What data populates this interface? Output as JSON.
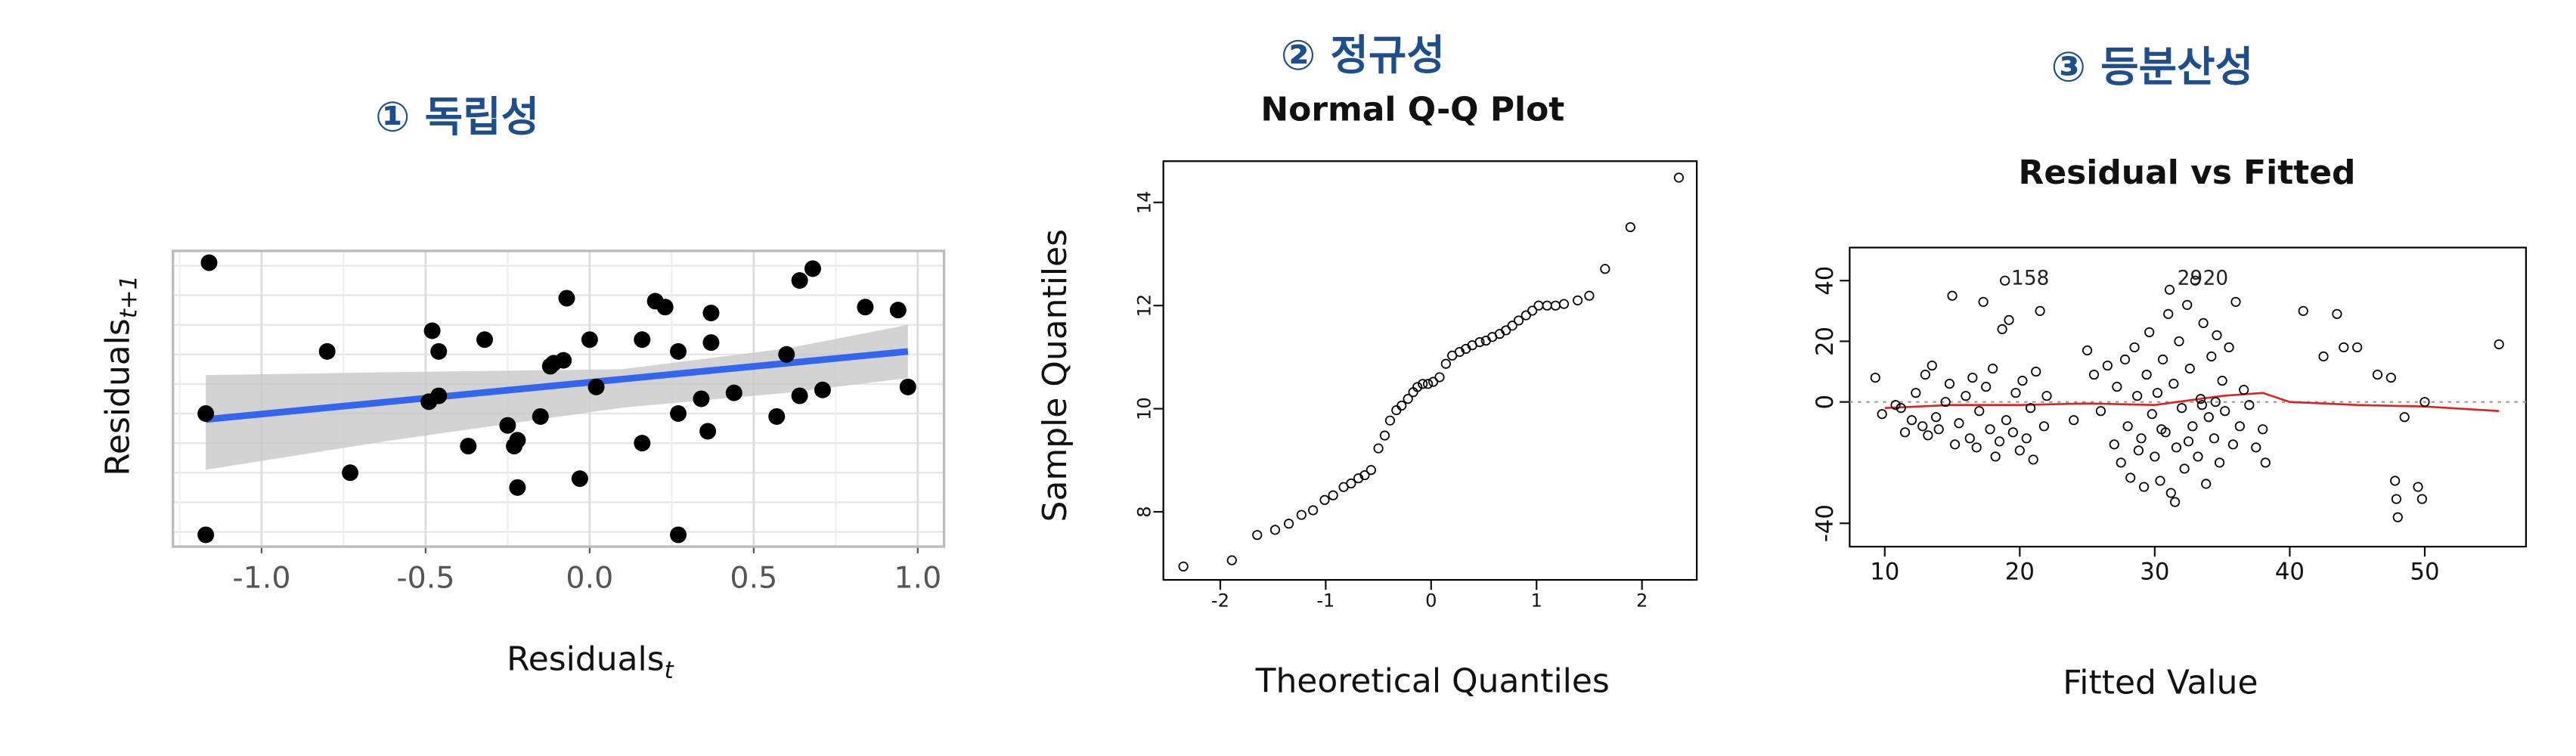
{
  "chart_data": [
    {
      "type": "scatter",
      "title": "① 독립성",
      "x_label": "Residuals",
      "x_label_subscript": "t",
      "y_label": "Residuals",
      "y_label_subscript": "t+1",
      "xlim": [
        -1.27,
        1.08
      ],
      "ylim": [
        -0.45,
        0.55
      ],
      "xticks": [
        {
          "value": -1,
          "label": "-1.0"
        },
        -0.5,
        {
          "value": 0,
          "label": "0.0"
        },
        0.5,
        {
          "value": 1,
          "label": "1.0"
        }
      ],
      "x_minor_gridlines": [
        -1.25,
        -0.75,
        -0.25,
        0.25,
        0.75
      ],
      "y_gridlines": [
        -0.4,
        -0.3,
        -0.2,
        -0.1,
        0,
        0.1,
        0.2,
        0.3,
        0.4,
        0.5
      ],
      "grid": true,
      "marker": "filled",
      "series": [
        {
          "name": "Residuals",
          "color": "#000000",
          "x": [
            -1.16,
            -1.17,
            -1.17,
            -0.8,
            -0.73,
            -0.48,
            -0.46,
            -0.49,
            -0.46,
            -0.37,
            -0.32,
            -0.25,
            -0.23,
            -0.22,
            -0.22,
            -0.15,
            -0.12,
            -0.11,
            -0.08,
            -0.07,
            -0.03,
            0.0,
            0.02,
            0.16,
            0.16,
            0.2,
            0.23,
            0.27,
            0.27,
            0.27,
            0.34,
            0.36,
            0.37,
            0.37,
            0.44,
            0.57,
            0.6,
            0.64,
            0.64,
            0.68,
            0.71,
            0.84,
            0.94,
            0.97
          ],
          "values": [
            0.51,
            0.0,
            -0.41,
            0.21,
            -0.2,
            0.28,
            0.21,
            0.04,
            0.06,
            -0.11,
            0.25,
            -0.04,
            -0.11,
            -0.09,
            -0.25,
            -0.01,
            0.16,
            0.17,
            0.18,
            0.39,
            -0.22,
            0.25,
            0.09,
            0.25,
            -0.1,
            0.38,
            0.36,
            0.21,
            0.0,
            -0.41,
            0.05,
            -0.06,
            0.34,
            0.24,
            0.07,
            -0.01,
            0.2,
            0.45,
            0.06,
            0.49,
            0.08,
            0.36,
            0.35,
            0.09
          ]
        }
      ],
      "fit_line": {
        "color": "#3366ee",
        "x": [
          -1.17,
          0.97
        ],
        "values": [
          -0.02,
          0.21
        ]
      },
      "confidence_band": {
        "color": "#c8c8c8",
        "x": [
          -1.17,
          -0.6,
          0.1,
          0.6,
          0.97
        ],
        "upper": [
          0.13,
          0.14,
          0.15,
          0.22,
          0.3
        ],
        "lower": [
          -0.19,
          -0.09,
          0.02,
          0.07,
          0.12
        ]
      }
    },
    {
      "type": "scatter",
      "title": "② 정규성",
      "subtitle": "Normal Q-Q Plot",
      "x_label": "Theoretical Quantiles",
      "y_label": "Sample Quantiles",
      "xlim": [
        -2.54,
        2.52
      ],
      "ylim": [
        6.68,
        14.8
      ],
      "xticks": [
        -2,
        -1,
        0,
        1,
        2
      ],
      "yticks": [
        8,
        10,
        12,
        14
      ],
      "grid": false,
      "marker": "open",
      "rotate_y_tick_labels": true,
      "series": [
        {
          "name": "Sample",
          "color": "#000000",
          "x": [
            -2.35,
            -1.89,
            -1.65,
            -1.48,
            -1.35,
            -1.23,
            -1.12,
            -1.01,
            -0.93,
            -0.83,
            -0.76,
            -0.69,
            -0.63,
            -0.57,
            -0.5,
            -0.44,
            -0.39,
            -0.33,
            -0.28,
            -0.22,
            -0.17,
            -0.13,
            -0.08,
            -0.03,
            0.02,
            0.08,
            0.14,
            0.2,
            0.27,
            0.33,
            0.39,
            0.46,
            0.52,
            0.58,
            0.65,
            0.71,
            0.77,
            0.83,
            0.9,
            0.96,
            1.02,
            1.1,
            1.18,
            1.26,
            1.39,
            1.5,
            1.65,
            1.89,
            2.35
          ],
          "values": [
            6.94,
            7.06,
            7.55,
            7.65,
            7.77,
            7.94,
            8.03,
            8.23,
            8.32,
            8.48,
            8.55,
            8.65,
            8.71,
            8.81,
            9.23,
            9.48,
            9.77,
            9.97,
            10.06,
            10.19,
            10.32,
            10.42,
            10.48,
            10.48,
            10.52,
            10.61,
            10.87,
            11.03,
            11.1,
            11.16,
            11.23,
            11.29,
            11.32,
            11.39,
            11.45,
            11.52,
            11.61,
            11.71,
            11.81,
            11.9,
            12.0,
            12.0,
            12.0,
            12.03,
            12.1,
            12.19,
            12.71,
            13.52,
            14.48
          ]
        }
      ]
    },
    {
      "type": "scatter",
      "title": "③ 등분산성",
      "subtitle": "Residual vs Fitted",
      "x_label": "Fitted Value",
      "xlim": [
        7.4,
        57.5
      ],
      "ylim": [
        -47.7,
        50.9
      ],
      "xticks": [
        10,
        20,
        30,
        40,
        50
      ],
      "yticks": [
        -40,
        0,
        20,
        40
      ],
      "grid": false,
      "marker": "open",
      "rotate_y_tick_labels": true,
      "reference_line": 0,
      "series": [
        {
          "name": "Residual",
          "color": "#000000",
          "x": [
            9.3,
            9.8,
            10.8,
            11.2,
            11.5,
            12,
            12.3,
            12.8,
            13,
            13.2,
            13.5,
            13.8,
            14,
            14.5,
            14.8,
            15,
            15.2,
            15.5,
            16,
            16.3,
            16.5,
            16.8,
            17,
            17.3,
            17.5,
            17.8,
            18,
            18.2,
            18.5,
            18.7,
            18.9,
            19,
            19.2,
            19.5,
            19.7,
            20,
            20.2,
            20.5,
            20.8,
            21,
            21.2,
            21.5,
            21.8,
            22,
            24,
            25,
            25.5,
            26,
            26.5,
            27,
            27.2,
            27.5,
            27.8,
            28,
            28.2,
            28.5,
            28.7,
            28.8,
            29,
            29.2,
            29.4,
            29.6,
            29.8,
            30,
            30.2,
            30.4,
            30.5,
            30.6,
            30.8,
            31,
            31.1,
            31.2,
            31.4,
            31.5,
            31.6,
            31.8,
            32,
            32.2,
            32.4,
            32.5,
            32.6,
            32.8,
            33,
            33.2,
            33.4,
            33.5,
            33.6,
            33.8,
            34,
            34.2,
            34.4,
            34.5,
            34.6,
            34.8,
            35,
            35.2,
            35.5,
            35.8,
            36,
            36.3,
            36.6,
            37,
            37.5,
            38,
            38.2,
            41,
            42.5,
            43.5,
            44,
            45,
            46.5,
            47.5,
            47.8,
            47.9,
            48,
            48.5,
            49.5,
            49.8,
            50,
            55.5
          ],
          "values": [
            8,
            -4,
            -1,
            -2,
            -10,
            -6,
            3,
            -8,
            9,
            -11,
            12,
            -5,
            -9,
            0,
            6,
            35,
            -14,
            -7,
            2,
            -12,
            8,
            -15,
            -3,
            33,
            5,
            -9,
            11,
            -18,
            -13,
            24,
            40,
            -6,
            27,
            -10,
            3,
            -16,
            7,
            -12,
            -2,
            -19,
            10,
            30,
            -8,
            2,
            -6,
            17,
            9,
            -3,
            12,
            -14,
            5,
            -20,
            14,
            -8,
            -25,
            18,
            2,
            -16,
            -12,
            -28,
            9,
            23,
            -4,
            -18,
            3,
            -26,
            -9,
            14,
            -10,
            29,
            37,
            -30,
            6,
            -33,
            -15,
            20,
            -2,
            -22,
            32,
            -13,
            11,
            -8,
            40,
            -18,
            1,
            -1,
            26,
            -27,
            -5,
            15,
            -12,
            0,
            22,
            -20,
            7,
            -3,
            18,
            -14,
            33,
            -8,
            4,
            -1,
            -15,
            -9,
            -20,
            30,
            15,
            29,
            18,
            18,
            9,
            8,
            -26,
            -32,
            -38,
            -5,
            -28,
            -32,
            0,
            19
          ]
        }
      ],
      "smooth_line": {
        "color": "#dd2222",
        "x": [
          10,
          15,
          20,
          25,
          30,
          35,
          38,
          40,
          45,
          50,
          55.5
        ],
        "values": [
          -2,
          -1,
          -1,
          -0.5,
          -1,
          2,
          3,
          0,
          -1,
          -1.5,
          -3
        ]
      },
      "annotations": [
        {
          "text": "158",
          "x": 19,
          "y": 40
        },
        {
          "text": "29",
          "x": 31.3,
          "y": 40
        },
        {
          "text": "20",
          "x": 33.2,
          "y": 40
        }
      ]
    }
  ]
}
